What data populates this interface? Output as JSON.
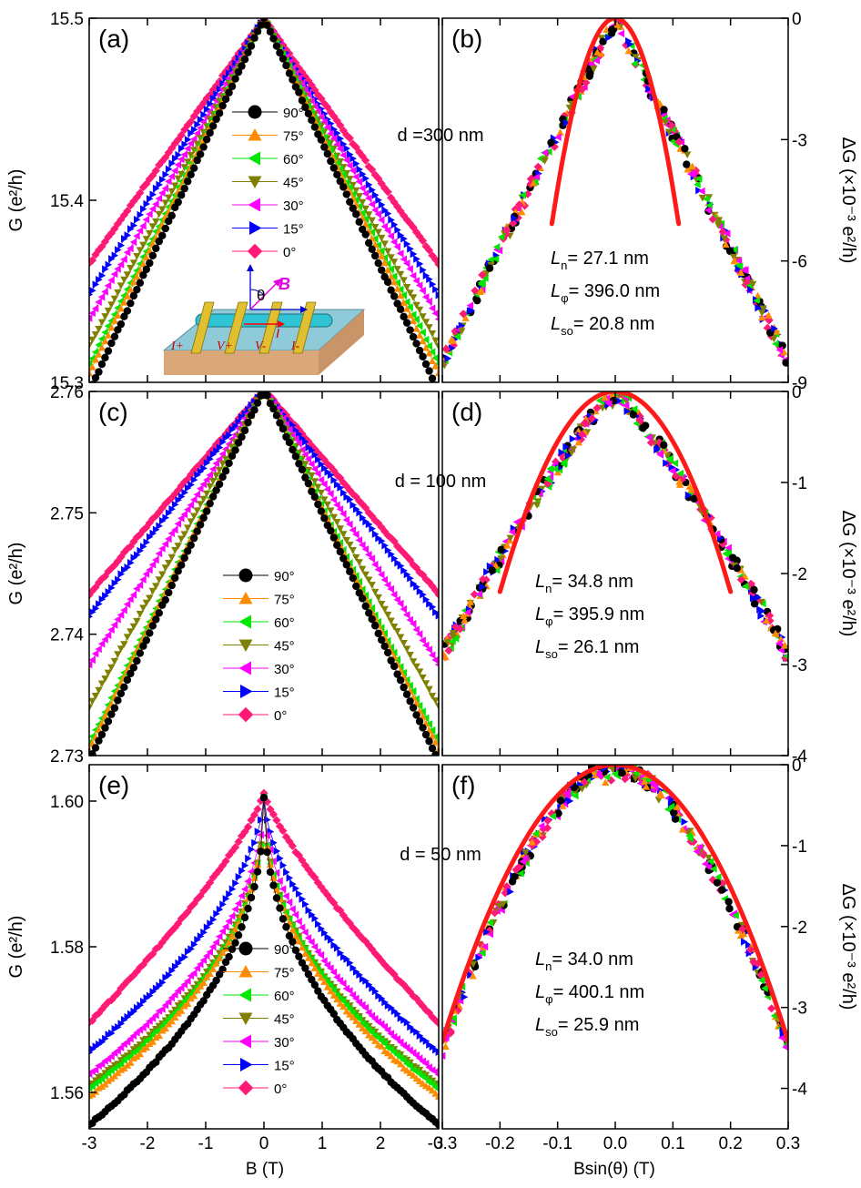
{
  "figure": {
    "legend_angles": [
      "90°",
      "75°",
      "60°",
      "45°",
      "30°",
      "15°",
      "0°"
    ],
    "series_colors": [
      "#000000",
      "#ff8c00",
      "#00e600",
      "#808000",
      "#ff00ff",
      "#0000ff",
      "#ff1a75"
    ],
    "series_markers": [
      "circle",
      "triangle-up",
      "triangle-left",
      "triangle-down",
      "triangle-left",
      "triangle-right",
      "diamond"
    ],
    "fit_color": "#ff1a1a",
    "x_label_left": "B (T)",
    "x_label_right": "Bsin(θ) (T)"
  },
  "chart_data": [
    {
      "panel": "(a)",
      "type": "scatter",
      "xlim": [
        -3,
        3
      ],
      "ylim": [
        15.3,
        15.5
      ],
      "yticks": [
        "15.3",
        "15.4",
        "15.5"
      ],
      "ylabel": "G (e²/h)",
      "annotation": "d =300 nm",
      "series": [
        {
          "angle": "90°",
          "center": 15.5,
          "edge": 15.295,
          "shape": 1.0
        },
        {
          "angle": "75°",
          "center": 15.5,
          "edge": 15.305,
          "shape": 1.0
        },
        {
          "angle": "60°",
          "center": 15.5,
          "edge": 15.31,
          "shape": 1.0
        },
        {
          "angle": "45°",
          "center": 15.5,
          "edge": 15.32,
          "shape": 1.0
        },
        {
          "angle": "30°",
          "center": 15.5,
          "edge": 15.335,
          "shape": 1.0
        },
        {
          "angle": "15°",
          "center": 15.5,
          "edge": 15.348,
          "shape": 1.0
        },
        {
          "angle": "0°",
          "center": 15.5,
          "edge": 15.365,
          "shape": 1.0
        }
      ]
    },
    {
      "panel": "(b)",
      "type": "scatter",
      "xlim": [
        -0.3,
        0.3
      ],
      "ylim": [
        -9,
        0
      ],
      "yticks": [
        "-9",
        "-6",
        "-3",
        "0"
      ],
      "ylabel": "ΔG (×10⁻³ e²/h)",
      "fit": {
        "a": 420,
        "xrange": [
          -0.11,
          0.11
        ]
      },
      "params": {
        "Ln": "= 27.1 nm",
        "Lphi": "= 396.0 nm",
        "Lso": "= 20.8 nm"
      },
      "data_envelope": {
        "center": 0,
        "edge": -8.5,
        "shape": 1.0
      }
    },
    {
      "panel": "(c)",
      "type": "scatter",
      "xlim": [
        -3,
        3
      ],
      "ylim": [
        2.73,
        2.76
      ],
      "yticks": [
        "2.73",
        "2.74",
        "2.75",
        "2.76"
      ],
      "ylabel": "G (e²/h)",
      "annotation": "d = 100 nm",
      "series": [
        {
          "angle": "90°",
          "center": 2.7602,
          "edge": 2.7295,
          "shape": 1.0
        },
        {
          "angle": "75°",
          "center": 2.7602,
          "edge": 2.7305,
          "shape": 1.0
        },
        {
          "angle": "60°",
          "center": 2.7602,
          "edge": 2.731,
          "shape": 1.0
        },
        {
          "angle": "45°",
          "center": 2.7602,
          "edge": 2.734,
          "shape": 1.0
        },
        {
          "angle": "30°",
          "center": 2.7602,
          "edge": 2.7375,
          "shape": 1.0
        },
        {
          "angle": "15°",
          "center": 2.7602,
          "edge": 2.7415,
          "shape": 1.0
        },
        {
          "angle": "0°",
          "center": 2.7602,
          "edge": 2.7433,
          "shape": 1.0
        }
      ]
    },
    {
      "panel": "(d)",
      "type": "scatter",
      "xlim": [
        -0.3,
        0.3
      ],
      "ylim": [
        -4,
        0
      ],
      "yticks": [
        "-4",
        "-3",
        "-2",
        "-1",
        "0"
      ],
      "ylabel": "ΔG (×10⁻³ e²/h)",
      "fit": {
        "a": 55,
        "xrange": [
          -0.2,
          0.2
        ]
      },
      "params": {
        "Ln": "= 34.8 nm",
        "Lphi": "= 395.9 nm",
        "Lso": "= 26.1 nm"
      },
      "data_envelope": {
        "center": 0,
        "edge": -2.9,
        "shape": 1.15
      }
    },
    {
      "panel": "(e)",
      "type": "scatter",
      "xlim": [
        -3,
        3
      ],
      "ylim": [
        1.555,
        1.605
      ],
      "yticks": [
        "1.56",
        "1.58",
        "1.60"
      ],
      "ylabel": "G (e²/h)",
      "annotation": "d = 50 nm",
      "series": [
        {
          "angle": "90°",
          "center": 1.6005,
          "edge": 1.5555,
          "shape": 0.45
        },
        {
          "angle": "75°",
          "center": 1.6005,
          "edge": 1.5595,
          "shape": 0.45
        },
        {
          "angle": "60°",
          "center": 1.6005,
          "edge": 1.5605,
          "shape": 0.45
        },
        {
          "angle": "45°",
          "center": 1.6005,
          "edge": 1.561,
          "shape": 0.45
        },
        {
          "angle": "30°",
          "center": 1.6005,
          "edge": 1.5625,
          "shape": 0.5
        },
        {
          "angle": "15°",
          "center": 1.6005,
          "edge": 1.5655,
          "shape": 0.6
        },
        {
          "angle": "0°",
          "center": 1.6012,
          "edge": 1.5695,
          "shape": 0.8
        }
      ]
    },
    {
      "panel": "(f)",
      "type": "scatter",
      "xlim": [
        -0.3,
        0.3
      ],
      "ylim": [
        -4.5,
        0
      ],
      "yticks": [
        "-4",
        "-3",
        "-2",
        "-1",
        "0"
      ],
      "ylabel": "ΔG (×10⁻³ e²/h)",
      "fit": {
        "a": 38,
        "xrange": [
          -0.3,
          0.3
        ]
      },
      "params": {
        "Ln": "= 34.0 nm",
        "Lphi": "= 400.1 nm",
        "Lso": "= 25.9 nm"
      },
      "data_envelope": {
        "center": 0,
        "edge": -3.5,
        "shape": 1.7
      }
    }
  ],
  "xticks_left": [
    "-3",
    "-2",
    "-1",
    "0",
    "1",
    "2",
    "3"
  ],
  "xticks_right": [
    "-0.3",
    "-0.2",
    "-0.1",
    "0.0",
    "0.1",
    "0.2",
    "0.3"
  ],
  "inset": {
    "labels": [
      "I+",
      "V+",
      "V-",
      "I-"
    ],
    "theta": "θ",
    "B": "B",
    "I": "I"
  }
}
